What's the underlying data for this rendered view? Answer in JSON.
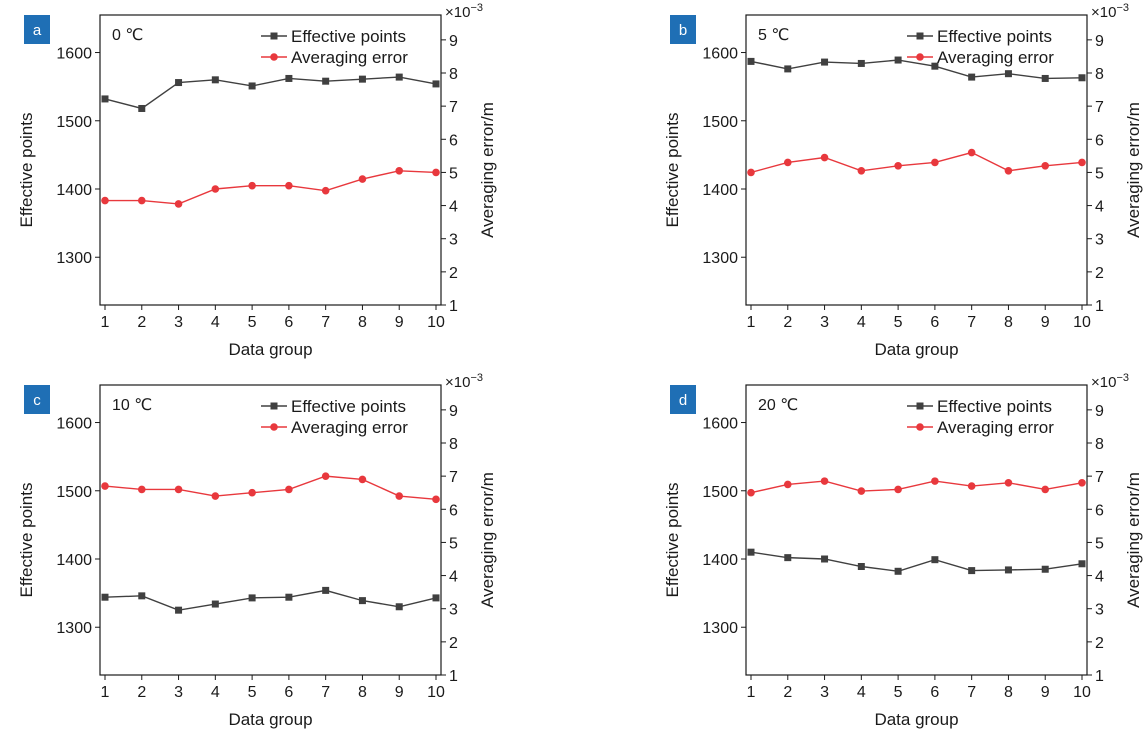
{
  "chart_data": [
    {
      "type": "line",
      "panel_label": "a",
      "temperature": "0 ℃",
      "xlabel": "Data group",
      "ylabel_left": "Effective points",
      "ylabel_right": "Averaging error/m",
      "right_axis_multiplier": "×10",
      "right_axis_exponent": "−3",
      "categories": [
        "1",
        "2",
        "3",
        "4",
        "5",
        "6",
        "7",
        "8",
        "9",
        "10"
      ],
      "ylim_left": [
        1230,
        1655
      ],
      "yticks_left": [
        1300,
        1400,
        1500,
        1600
      ],
      "ylim_right": [
        1,
        9.75
      ],
      "yticks_right": [
        1,
        2,
        3,
        4,
        5,
        6,
        7,
        8,
        9
      ],
      "series": [
        {
          "name": "Effective points",
          "axis": "left",
          "color": "#404040",
          "marker": "square",
          "values": [
            1532,
            1518,
            1556,
            1560,
            1551,
            1562,
            1558,
            1561,
            1564,
            1554
          ]
        },
        {
          "name": "Averaging error",
          "axis": "right",
          "color": "#e8383d",
          "marker": "circle",
          "values": [
            4.15,
            4.15,
            4.05,
            4.5,
            4.6,
            4.6,
            4.45,
            4.8,
            5.05,
            5.0
          ]
        }
      ]
    },
    {
      "type": "line",
      "panel_label": "b",
      "temperature": "5 ℃",
      "xlabel": "Data group",
      "ylabel_left": "Effective points",
      "ylabel_right": "Averaging error/m",
      "right_axis_multiplier": "×10",
      "right_axis_exponent": "−3",
      "categories": [
        "1",
        "2",
        "3",
        "4",
        "5",
        "6",
        "7",
        "8",
        "9",
        "10"
      ],
      "ylim_left": [
        1230,
        1655
      ],
      "yticks_left": [
        1300,
        1400,
        1500,
        1600
      ],
      "ylim_right": [
        1,
        9.75
      ],
      "yticks_right": [
        1,
        2,
        3,
        4,
        5,
        6,
        7,
        8,
        9
      ],
      "series": [
        {
          "name": "Effective points",
          "axis": "left",
          "color": "#404040",
          "marker": "square",
          "values": [
            1587,
            1576,
            1586,
            1584,
            1589,
            1580,
            1564,
            1569,
            1562,
            1563
          ]
        },
        {
          "name": "Averaging error",
          "axis": "right",
          "color": "#e8383d",
          "marker": "circle",
          "values": [
            5.0,
            5.3,
            5.45,
            5.05,
            5.2,
            5.3,
            5.6,
            5.05,
            5.2,
            5.3
          ]
        }
      ]
    },
    {
      "type": "line",
      "panel_label": "c",
      "temperature": "10 ℃",
      "xlabel": "Data group",
      "ylabel_left": "Effective points",
      "ylabel_right": "Averaging error/m",
      "right_axis_multiplier": "×10",
      "right_axis_exponent": "−3",
      "categories": [
        "1",
        "2",
        "3",
        "4",
        "5",
        "6",
        "7",
        "8",
        "9",
        "10"
      ],
      "ylim_left": [
        1230,
        1655
      ],
      "yticks_left": [
        1300,
        1400,
        1500,
        1600
      ],
      "ylim_right": [
        1,
        9.75
      ],
      "yticks_right": [
        1,
        2,
        3,
        4,
        5,
        6,
        7,
        8,
        9
      ],
      "series": [
        {
          "name": "Effective points",
          "axis": "left",
          "color": "#404040",
          "marker": "square",
          "values": [
            1344,
            1346,
            1325,
            1334,
            1343,
            1344,
            1354,
            1339,
            1330,
            1343
          ]
        },
        {
          "name": "Averaging error",
          "axis": "right",
          "color": "#e8383d",
          "marker": "circle",
          "values": [
            6.7,
            6.6,
            6.6,
            6.4,
            6.5,
            6.6,
            7.0,
            6.9,
            6.4,
            6.3
          ]
        }
      ]
    },
    {
      "type": "line",
      "panel_label": "d",
      "temperature": "20 ℃",
      "xlabel": "Data group",
      "ylabel_left": "Effective points",
      "ylabel_right": "Averaging error/m",
      "right_axis_multiplier": "×10",
      "right_axis_exponent": "−3",
      "categories": [
        "1",
        "2",
        "3",
        "4",
        "5",
        "6",
        "7",
        "8",
        "9",
        "10"
      ],
      "ylim_left": [
        1230,
        1655
      ],
      "yticks_left": [
        1300,
        1400,
        1500,
        1600
      ],
      "ylim_right": [
        1,
        9.75
      ],
      "yticks_right": [
        1,
        2,
        3,
        4,
        5,
        6,
        7,
        8,
        9
      ],
      "series": [
        {
          "name": "Effective points",
          "axis": "left",
          "color": "#404040",
          "marker": "square",
          "values": [
            1410,
            1402,
            1400,
            1389,
            1382,
            1399,
            1383,
            1384,
            1385,
            1393
          ]
        },
        {
          "name": "Averaging error",
          "axis": "right",
          "color": "#e8383d",
          "marker": "circle",
          "values": [
            6.5,
            6.75,
            6.85,
            6.55,
            6.6,
            6.85,
            6.7,
            6.8,
            6.6,
            6.8
          ]
        }
      ]
    }
  ],
  "colors": {
    "panel_badge": "#1f6fb5",
    "axis": "#1a1a1a",
    "effective_points": "#404040",
    "averaging_error": "#e8383d"
  }
}
